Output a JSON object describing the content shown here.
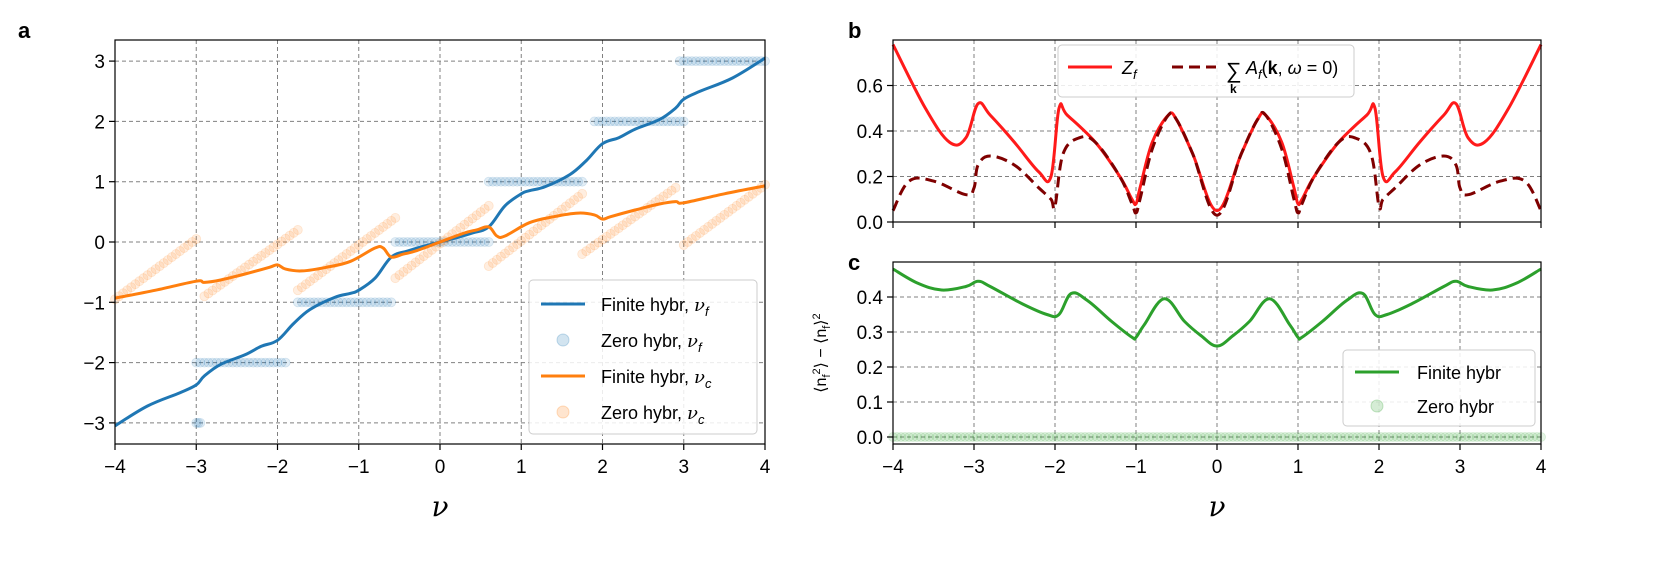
{
  "panel_labels": [
    "a",
    "b",
    "c"
  ],
  "colors": {
    "blue": "#1f77b4",
    "orange": "#ff7f0e",
    "red": "#ff1a1a",
    "darkred": "#7f0000",
    "green": "#2ca02c"
  },
  "chart_data": [
    {
      "panel": "a",
      "type": "line",
      "xlabel": "ν",
      "ylabel": "",
      "xlim": [
        -4,
        4
      ],
      "ylim": [
        -3.35,
        3.35
      ],
      "xticks": [
        -4,
        -3,
        -2,
        -1,
        0,
        1,
        2,
        3,
        4
      ],
      "xtick_labels": [
        "−4",
        "−3",
        "−2",
        "−1",
        "0",
        "1",
        "2",
        "3",
        "4"
      ],
      "yticks": [
        -3,
        -2,
        -1,
        0,
        1,
        2,
        3
      ],
      "ytick_labels": [
        "−3",
        "−2",
        "−1",
        "0",
        "1",
        "2",
        "3"
      ],
      "grid": true,
      "legend_position": "lower-right",
      "series": [
        {
          "name": "Finite hybr, ν_f",
          "name_main": "Finite hybr, ",
          "name_sym": "ν",
          "name_sub": "f",
          "style": "line",
          "color": "#1f77b4",
          "x": [
            -4,
            -3.6,
            -3.2,
            -3,
            -2.9,
            -2.7,
            -2.4,
            -2.2,
            -2,
            -1.8,
            -1.6,
            -1.3,
            -1.1,
            -1.0,
            -0.8,
            -0.6,
            -0.4,
            -0.2,
            0,
            0.2,
            0.4,
            0.6,
            0.8,
            1.0,
            1.1,
            1.3,
            1.6,
            1.8,
            2.0,
            2.2,
            2.4,
            2.7,
            2.9,
            3.0,
            3.2,
            3.6,
            4.0
          ],
          "y": [
            -3.05,
            -2.72,
            -2.5,
            -2.37,
            -2.22,
            -2.03,
            -1.87,
            -1.73,
            -1.63,
            -1.35,
            -1.12,
            -0.92,
            -0.85,
            -0.8,
            -0.6,
            -0.25,
            -0.15,
            -0.07,
            0,
            0.07,
            0.15,
            0.25,
            0.6,
            0.8,
            0.85,
            0.92,
            1.12,
            1.35,
            1.63,
            1.73,
            1.87,
            2.03,
            2.22,
            2.37,
            2.5,
            2.72,
            3.05
          ]
        },
        {
          "name": "Zero hybr, ν_f",
          "name_main": "Zero hybr, ",
          "name_sym": "ν",
          "name_sub": "f",
          "style": "markers",
          "color": "#1f77b4",
          "segments": [
            {
              "x": [
                -3.0,
                -2.95
              ],
              "y": [
                -3,
                -3
              ]
            },
            {
              "x": [
                -3.0,
                -1.9
              ],
              "y": [
                -2,
                -2
              ]
            },
            {
              "x": [
                -1.75,
                -0.6
              ],
              "y": [
                -1,
                -1
              ]
            },
            {
              "x": [
                -0.55,
                0.6
              ],
              "y": [
                0,
                0
              ]
            },
            {
              "x": [
                0.6,
                1.75
              ],
              "y": [
                1,
                1
              ]
            },
            {
              "x": [
                1.9,
                3.0
              ],
              "y": [
                2,
                2
              ]
            },
            {
              "x": [
                2.95,
                4.0
              ],
              "y": [
                3,
                3
              ]
            }
          ]
        },
        {
          "name": "Finite hybr, ν_c",
          "name_main": "Finite hybr, ",
          "name_sym": "ν",
          "name_sub": "c",
          "style": "line",
          "color": "#ff7f0e",
          "x": [
            -4,
            -3.5,
            -3,
            -2.9,
            -2.7,
            -2.4,
            -2.1,
            -2.0,
            -1.9,
            -1.7,
            -1.4,
            -1.1,
            -0.8,
            -0.7,
            -0.6,
            -0.45,
            -0.3,
            0,
            0.3,
            0.45,
            0.6,
            0.7,
            0.8,
            1.1,
            1.4,
            1.7,
            1.9,
            2.0,
            2.1,
            2.4,
            2.7,
            2.9,
            3.0,
            3.5,
            4.0
          ],
          "y": [
            -0.93,
            -0.8,
            -0.65,
            -0.67,
            -0.63,
            -0.53,
            -0.42,
            -0.38,
            -0.45,
            -0.48,
            -0.42,
            -0.32,
            -0.1,
            -0.1,
            -0.25,
            -0.2,
            -0.15,
            0,
            0.15,
            0.2,
            0.25,
            0.1,
            0.1,
            0.32,
            0.42,
            0.48,
            0.45,
            0.38,
            0.42,
            0.53,
            0.63,
            0.67,
            0.65,
            0.8,
            0.93
          ]
        },
        {
          "name": "Zero hybr, ν_c",
          "name_main": "Zero hybr, ",
          "name_sym": "ν",
          "name_sub": "c",
          "style": "markers",
          "color": "#ff7f0e",
          "segments": [
            {
              "x": [
                -4.0,
                -3.0
              ],
              "y": [
                -0.95,
                0.05
              ]
            },
            {
              "x": [
                -2.9,
                -1.75
              ],
              "y": [
                -0.9,
                0.2
              ]
            },
            {
              "x": [
                -1.75,
                -0.55
              ],
              "y": [
                -0.8,
                0.4
              ]
            },
            {
              "x": [
                -0.55,
                0.6
              ],
              "y": [
                -0.6,
                0.6
              ]
            },
            {
              "x": [
                0.6,
                1.75
              ],
              "y": [
                -0.4,
                0.8
              ]
            },
            {
              "x": [
                1.75,
                2.9
              ],
              "y": [
                -0.2,
                0.9
              ]
            },
            {
              "x": [
                3.0,
                4.0
              ],
              "y": [
                -0.05,
                0.95
              ]
            }
          ]
        }
      ]
    },
    {
      "panel": "b",
      "type": "line",
      "xlabel": "",
      "ylabel": "",
      "xlim": [
        -4,
        4
      ],
      "ylim": [
        0,
        0.8
      ],
      "xticks": [
        -4,
        -3,
        -2,
        -1,
        0,
        1,
        2,
        3,
        4
      ],
      "yticks": [
        0.0,
        0.2,
        0.4,
        0.6
      ],
      "ytick_labels": [
        "0.0",
        "0.2",
        "0.4",
        "0.6"
      ],
      "grid": true,
      "legend_position": "top-center",
      "series": [
        {
          "name": "Z_f",
          "name_main": "Z",
          "name_sub": "f",
          "style": "line",
          "color": "#ff1a1a",
          "x": [
            -4,
            -3.6,
            -3.3,
            -3.1,
            -2.95,
            -2.8,
            -2.5,
            -2.2,
            -2.05,
            -1.95,
            -1.85,
            -1.5,
            -1.2,
            -1.05,
            -1.0,
            -0.95,
            -0.8,
            -0.6,
            -0.5,
            -0.3,
            0,
            0.3,
            0.5,
            0.6,
            0.8,
            0.95,
            1.0,
            1.05,
            1.2,
            1.5,
            1.85,
            1.95,
            2.05,
            2.2,
            2.5,
            2.8,
            2.95,
            3.1,
            3.3,
            3.6,
            4.0
          ],
          "y": [
            0.78,
            0.5,
            0.35,
            0.37,
            0.52,
            0.47,
            0.35,
            0.22,
            0.2,
            0.5,
            0.47,
            0.35,
            0.2,
            0.1,
            0.08,
            0.15,
            0.35,
            0.47,
            0.45,
            0.3,
            0.05,
            0.3,
            0.45,
            0.47,
            0.35,
            0.15,
            0.08,
            0.1,
            0.2,
            0.35,
            0.47,
            0.5,
            0.2,
            0.22,
            0.35,
            0.47,
            0.52,
            0.37,
            0.35,
            0.5,
            0.78
          ]
        },
        {
          "name": "∑k A_f(k, ω = 0)",
          "style": "dashed",
          "color": "#7f0000",
          "x": [
            -4,
            -3.8,
            -3.5,
            -3.1,
            -3.0,
            -2.95,
            -2.8,
            -2.5,
            -2.2,
            -2.05,
            -2.0,
            -1.9,
            -1.7,
            -1.5,
            -1.2,
            -1.05,
            -1.0,
            -0.95,
            -0.8,
            -0.6,
            -0.5,
            -0.3,
            0,
            0.3,
            0.5,
            0.6,
            0.8,
            0.95,
            1.0,
            1.05,
            1.2,
            1.5,
            1.7,
            1.9,
            2.0,
            2.05,
            2.2,
            2.5,
            2.8,
            2.95,
            3.0,
            3.1,
            3.5,
            3.8,
            4.0
          ],
          "y": [
            0.05,
            0.18,
            0.18,
            0.12,
            0.15,
            0.25,
            0.29,
            0.25,
            0.15,
            0.1,
            0.07,
            0.3,
            0.37,
            0.35,
            0.2,
            0.08,
            0.04,
            0.1,
            0.32,
            0.47,
            0.45,
            0.3,
            0.03,
            0.3,
            0.45,
            0.47,
            0.32,
            0.1,
            0.04,
            0.08,
            0.2,
            0.35,
            0.37,
            0.3,
            0.07,
            0.1,
            0.15,
            0.25,
            0.29,
            0.25,
            0.15,
            0.12,
            0.18,
            0.18,
            0.05
          ]
        }
      ]
    },
    {
      "panel": "c",
      "type": "line",
      "xlabel": "ν",
      "ylabel": "⟨n_f²⟩ − ⟨n_f⟩²",
      "xlim": [
        -4,
        4
      ],
      "ylim": [
        -0.02,
        0.5
      ],
      "xticks": [
        -4,
        -3,
        -2,
        -1,
        0,
        1,
        2,
        3,
        4
      ],
      "xtick_labels": [
        "−4",
        "−3",
        "−2",
        "−1",
        "0",
        "1",
        "2",
        "3",
        "4"
      ],
      "yticks": [
        0.0,
        0.1,
        0.2,
        0.3,
        0.4
      ],
      "ytick_labels": [
        "0.0",
        "0.1",
        "0.2",
        "0.3",
        "0.4"
      ],
      "grid": true,
      "legend_position": "lower-right",
      "series": [
        {
          "name": "Finite hybr",
          "style": "line",
          "color": "#2ca02c",
          "x": [
            -4,
            -3.7,
            -3.4,
            -3.1,
            -2.95,
            -2.8,
            -2.4,
            -2.1,
            -1.95,
            -1.8,
            -1.6,
            -1.3,
            -1.05,
            -1.0,
            -0.9,
            -0.65,
            -0.4,
            -0.2,
            0,
            0.2,
            0.4,
            0.65,
            0.9,
            1.0,
            1.05,
            1.3,
            1.6,
            1.8,
            1.95,
            2.1,
            2.4,
            2.8,
            2.95,
            3.1,
            3.4,
            3.7,
            4.0
          ],
          "y": [
            0.48,
            0.44,
            0.42,
            0.43,
            0.445,
            0.43,
            0.38,
            0.35,
            0.35,
            0.41,
            0.39,
            0.33,
            0.285,
            0.285,
            0.32,
            0.395,
            0.33,
            0.29,
            0.26,
            0.29,
            0.33,
            0.395,
            0.32,
            0.285,
            0.285,
            0.33,
            0.39,
            0.41,
            0.35,
            0.35,
            0.38,
            0.43,
            0.445,
            0.43,
            0.42,
            0.44,
            0.48
          ]
        },
        {
          "name": "Zero hybr",
          "style": "markers",
          "color": "#2ca02c",
          "segments": [
            {
              "x": [
                -4.0,
                4.0
              ],
              "y": [
                0.0,
                0.0
              ]
            }
          ]
        }
      ]
    }
  ]
}
